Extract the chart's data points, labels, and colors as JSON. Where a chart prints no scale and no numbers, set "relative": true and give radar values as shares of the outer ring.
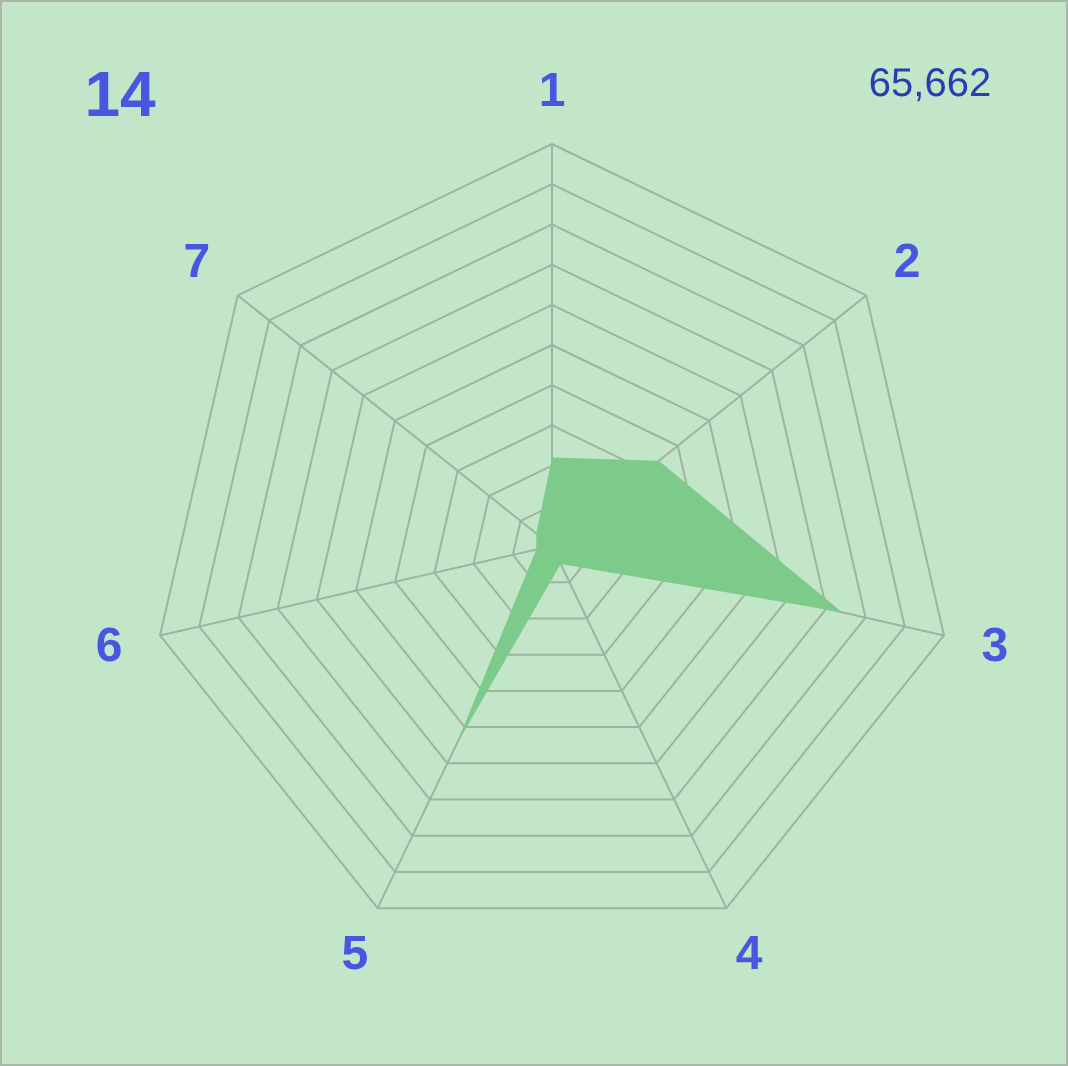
{
  "chart_data": {
    "type": "radar",
    "title": "14",
    "annotations": [
      "65,662"
    ],
    "categories": [
      "1",
      "2",
      "3",
      "4",
      "5",
      "6",
      "7"
    ],
    "relative": true,
    "grid": true,
    "series": [
      {
        "color": "#7ccb8a",
        "values": [
          0.22,
          0.34,
          0.74,
          0.05,
          0.55,
          0.04,
          0.05
        ]
      }
    ]
  }
}
